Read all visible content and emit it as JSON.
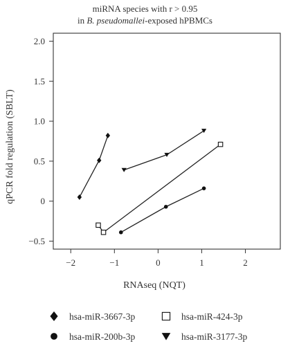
{
  "chart_data": {
    "type": "line",
    "title_line1": "miRNA species with r > 0.95",
    "title_line2_pre": "in ",
    "title_line2_italic": "B. pseudomallei",
    "title_line2_post": "-exposed hPBMCs",
    "xlabel": "RNAseq (NQT)",
    "ylabel": "qPCR fold regulation (SBLT)",
    "xlim": [
      -2.4,
      2.8
    ],
    "ylim": [
      -0.6,
      2.1
    ],
    "xticks": [
      -2,
      -1,
      0,
      1,
      2
    ],
    "yticks": [
      -0.5,
      0,
      0.5,
      1.0,
      1.5,
      2.0
    ],
    "xtick_labels": [
      "−2",
      "−1",
      "0",
      "1",
      "2"
    ],
    "ytick_labels": [
      "−0.5",
      "0",
      "0.5",
      "1.0",
      "1.5",
      "2.0"
    ],
    "grid": false,
    "legend_position": "bottom",
    "series": [
      {
        "name": "hsa-miR-3667-3p",
        "marker": "diamond",
        "x": [
          -1.8,
          -1.35,
          -1.15
        ],
        "y": [
          0.05,
          0.51,
          0.82
        ]
      },
      {
        "name": "hsa-miR-424-3p",
        "marker": "square-open",
        "x": [
          -1.37,
          -1.25,
          1.43
        ],
        "y": [
          -0.3,
          -0.39,
          0.71
        ]
      },
      {
        "name": "hsa-miR-200b-3p",
        "marker": "circle",
        "x": [
          -0.85,
          0.18,
          1.05
        ],
        "y": [
          -0.39,
          -0.07,
          0.16
        ]
      },
      {
        "name": "hsa-miR-3177-3p",
        "marker": "triangle-down",
        "x": [
          -0.78,
          0.2,
          1.05
        ],
        "y": [
          0.39,
          0.58,
          0.88
        ]
      }
    ],
    "colors": {
      "line": "#222222",
      "marker": "#111111",
      "axis": "#333333"
    }
  }
}
